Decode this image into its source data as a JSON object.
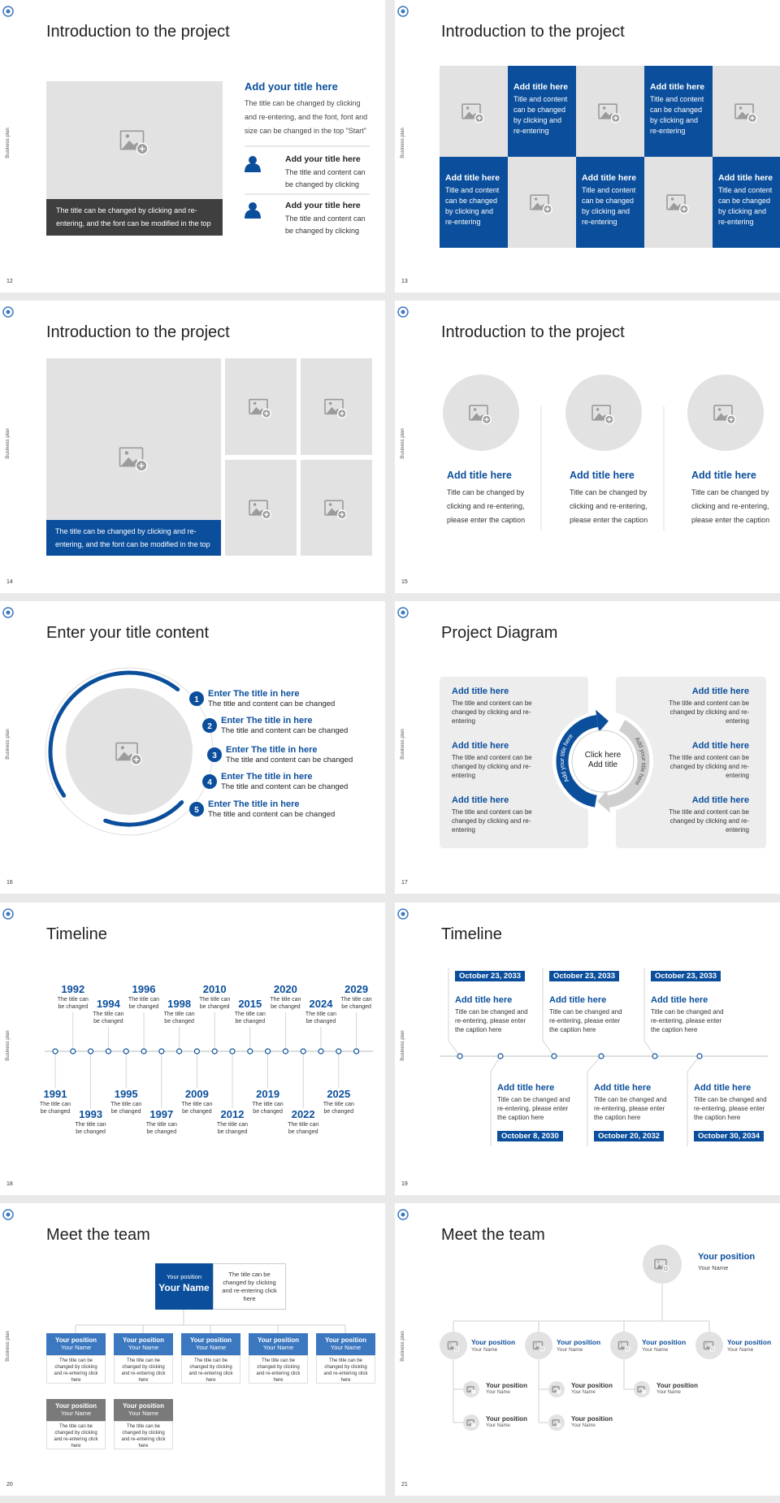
{
  "side_label": "Business plan",
  "slides": [
    {
      "number": "12",
      "title": "Introduction to the project",
      "caption": "The title can be changed by clicking and re-entering, and the font can be modified in the top",
      "heading": "Add your title here",
      "body": "The title can be changed by clicking and re-entering, and the font, font and size can be changed in the top \"Start\"",
      "items": [
        {
          "title": "Add your title here",
          "body": "The title and content can be changed by clicking"
        },
        {
          "title": "Add your title here",
          "body": "The title and content can be changed by clicking"
        }
      ]
    },
    {
      "number": "13",
      "title": "Introduction to the project",
      "cells": [
        {
          "title": "Add title here",
          "body": "Title and content can be changed by clicking and re-entering"
        },
        {
          "title": "Add title here",
          "body": "Title and content can be changed by clicking and re-entering"
        },
        {
          "title": "Add title here",
          "body": "Title and content can be changed by clicking and re-entering"
        },
        {
          "title": "Add title here",
          "body": "Title and content can be changed by clicking and re-entering"
        },
        {
          "title": "Add title here",
          "body": "Title and content can be changed by clicking and re-entering"
        }
      ]
    },
    {
      "number": "14",
      "title": "Introduction to the project",
      "caption": "The title can be changed by clicking and re-entering, and the font can be modified in the top"
    },
    {
      "number": "15",
      "title": "Introduction to the project",
      "items": [
        {
          "title": "Add title here",
          "body": "Title can be changed by clicking and re-entering, please enter the caption"
        },
        {
          "title": "Add title here",
          "body": "Title can be changed by clicking and re-entering, please enter the caption"
        },
        {
          "title": "Add title here",
          "body": "Title can be changed by clicking and re-entering, please enter the caption"
        }
      ]
    },
    {
      "number": "16",
      "title": "Enter your title content",
      "items": [
        {
          "number": "1",
          "title": "Enter The title in here",
          "body": "The title and content can be changed"
        },
        {
          "number": "2",
          "title": "Enter The title in here",
          "body": "The title and content can be changed"
        },
        {
          "number": "3",
          "title": "Enter The title in here",
          "body": "The title and content can be changed"
        },
        {
          "number": "4",
          "title": "Enter The title in here",
          "body": "The title and content can be changed"
        },
        {
          "number": "5",
          "title": "Enter The title in here",
          "body": "The title and content can be changed"
        }
      ]
    },
    {
      "number": "17",
      "title": "Project Diagram",
      "items": [
        {
          "title": "Add title here",
          "body": "The title and content can be changed by clicking and re-entering"
        },
        {
          "title": "Add title here",
          "body": "The title and content can be changed by clicking and re-entering"
        },
        {
          "title": "Add title here",
          "body": "The title and content can be changed by clicking and re-entering"
        },
        {
          "title": "Add title here",
          "body": "The title and content can be changed by clicking and re-entering"
        },
        {
          "title": "Add title here",
          "body": "The title and content can be changed by clicking and re-entering"
        },
        {
          "title": "Add title here",
          "body": "The title and content can be changed by clicking and re-entering"
        }
      ],
      "center": [
        "Click here",
        "Add title"
      ],
      "arc_labels": [
        "Add your title here",
        "Add your title here"
      ]
    },
    {
      "number": "18",
      "title": "Timeline",
      "events": [
        {
          "year": "1991",
          "caption": "The title can be changed"
        },
        {
          "year": "1992",
          "caption": "The title can be changed"
        },
        {
          "year": "1993",
          "caption": "The title can be changed"
        },
        {
          "year": "1994",
          "caption": "The title can be changed"
        },
        {
          "year": "1995",
          "caption": "The title can be changed"
        },
        {
          "year": "1996",
          "caption": "The title can be changed"
        },
        {
          "year": "1997",
          "caption": "The title can be changed"
        },
        {
          "year": "1998",
          "caption": "The title can be changed"
        },
        {
          "year": "2009",
          "caption": "The title can be changed"
        },
        {
          "year": "2010",
          "caption": "The title can be changed"
        },
        {
          "year": "2012",
          "caption": "The title can be changed"
        },
        {
          "year": "2015",
          "caption": "The title can be changed"
        },
        {
          "year": "2019",
          "caption": "The title can be changed"
        },
        {
          "year": "2020",
          "caption": "The title can be changed"
        },
        {
          "year": "2022",
          "caption": "The title can be changed"
        },
        {
          "year": "2024",
          "caption": "The title can be changed"
        },
        {
          "year": "2025",
          "caption": "The title can be changed"
        },
        {
          "year": "2029",
          "caption": "The title can be changed"
        }
      ]
    },
    {
      "number": "19",
      "title": "Timeline",
      "events": [
        {
          "date": "October 23, 2033",
          "title": "Add title here",
          "body": "Title can be changed and re-entering, please enter the caption here"
        },
        {
          "date": "October 8, 2030",
          "title": "Add title here",
          "body": "Title can be changed and re-entering, please enter the caption here"
        },
        {
          "date": "October 23, 2033",
          "title": "Add title here",
          "body": "Title can be changed and re-entering, please enter the caption here"
        },
        {
          "date": "October 20, 2032",
          "title": "Add title here",
          "body": "Title can be changed and re-entering, please enter the caption here"
        },
        {
          "date": "October 23, 2033",
          "title": "Add title here",
          "body": "Title can be changed and re-entering, please enter the caption here"
        },
        {
          "date": "October 30, 2034",
          "title": "Add title here",
          "body": "Title can be changed and re-entering, please enter the caption here"
        }
      ]
    },
    {
      "number": "20",
      "title": "Meet the team",
      "lead": {
        "position": "Your position",
        "name": "Your Name",
        "note": "The title can be changed by clicking and re-entering click here"
      },
      "members": [
        {
          "position": "Your position",
          "name": "Your Name",
          "note": "The title can be changed by clicking and re-entering click here"
        },
        {
          "position": "Your position",
          "name": "Your Name",
          "note": "The title can be changed by clicking and re-entering click here"
        },
        {
          "position": "Your position",
          "name": "Your Name",
          "note": "The title can be changed by clicking and re-entering click here"
        },
        {
          "position": "Your position",
          "name": "Your Name",
          "note": "The title can be changed by clicking and re-entering click here"
        },
        {
          "position": "Your position",
          "name": "Your Name",
          "note": "The title can be changed by clicking and re-entering click here"
        },
        {
          "position": "Your position",
          "name": "Your Name",
          "note": "The title can be changed by clicking and re-entering click here"
        },
        {
          "position": "Your position",
          "name": "Your Name",
          "note": "The title can be changed by clicking and re-entering click here"
        }
      ]
    },
    {
      "number": "21",
      "title": "Meet the team",
      "lead": {
        "position": "Your position",
        "name": "Your Name"
      },
      "members": [
        {
          "position": "Your position",
          "name": "Your Name",
          "reports": [
            {
              "position": "Your position",
              "name": "Your Name"
            },
            {
              "position": "Your position",
              "name": "Your Name"
            }
          ]
        },
        {
          "position": "Your position",
          "name": "Your Name",
          "reports": [
            {
              "position": "Your position",
              "name": "Your Name"
            },
            {
              "position": "Your position",
              "name": "Your Name"
            }
          ]
        },
        {
          "position": "Your position",
          "name": "Your Name",
          "reports": [
            {
              "position": "Your position",
              "name": "Your Name"
            }
          ]
        },
        {
          "position": "Your position",
          "name": "Your Name",
          "reports": []
        }
      ]
    }
  ]
}
